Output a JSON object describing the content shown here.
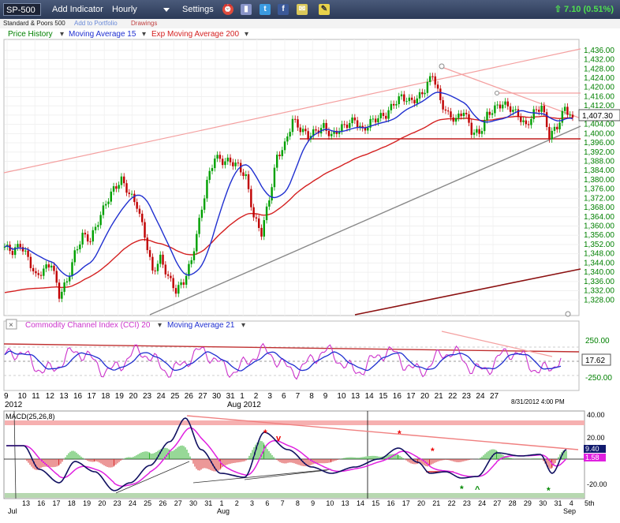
{
  "toolbar": {
    "symbol": "SP-500",
    "add_indicator": "Add Indicator",
    "interval": "Hourly",
    "settings": "Settings",
    "change": "7.10 (0.51%)"
  },
  "subbar": {
    "name": "Standard & Poors 500",
    "add_portfolio": "Add to Portfolio",
    "drawings": "Drawings"
  },
  "price_legend": {
    "price_history": "Price History",
    "ma15": "Moving Average 15",
    "ema200": "Exp Moving Average 200"
  },
  "cci_legend": {
    "cci": "Commodity Channel Index (CCI) 20",
    "ma21": "Moving Average 21"
  },
  "macd_label": "MACD(25,26,8)",
  "timestamp": "8/31/2012 4:00 PM",
  "colors": {
    "toolbar": "#2b3a57",
    "price_up": "#00a000",
    "price_down": "#c00000",
    "ma15": "#1f2fd0",
    "ema200": "#d42020",
    "trend_red": "#f08a8a",
    "trend_gray": "#808080",
    "cci": "#cc33cc",
    "macd_line": "#101060",
    "signal_line": "#e020e0"
  },
  "chart_data": [
    {
      "type": "line",
      "title": "SP-500 Hourly",
      "series": [
        {
          "name": "Moving Average 15"
        },
        {
          "name": "Exp Moving Average 200"
        }
      ],
      "close_points": [
        [
          0,
          1351
        ],
        [
          3,
          1349
        ],
        [
          6,
          1352
        ],
        [
          9,
          1346
        ],
        [
          12,
          1338
        ],
        [
          15,
          1341
        ],
        [
          18,
          1344
        ],
        [
          21,
          1330
        ],
        [
          24,
          1336
        ],
        [
          27,
          1348
        ],
        [
          30,
          1356
        ],
        [
          33,
          1354
        ],
        [
          36,
          1362
        ],
        [
          39,
          1370
        ],
        [
          42,
          1376
        ],
        [
          45,
          1380
        ],
        [
          48,
          1374
        ],
        [
          51,
          1369
        ],
        [
          54,
          1356
        ],
        [
          57,
          1340
        ],
        [
          60,
          1346
        ],
        [
          63,
          1338
        ],
        [
          66,
          1332
        ],
        [
          69,
          1336
        ],
        [
          72,
          1345
        ],
        [
          75,
          1362
        ],
        [
          78,
          1379
        ],
        [
          81,
          1390
        ],
        [
          84,
          1388
        ],
        [
          87,
          1388
        ],
        [
          90,
          1386
        ],
        [
          93,
          1381
        ],
        [
          96,
          1364
        ],
        [
          99,
          1357
        ],
        [
          102,
          1372
        ],
        [
          105,
          1390
        ],
        [
          108,
          1395
        ],
        [
          111,
          1406
        ],
        [
          114,
          1402
        ],
        [
          117,
          1399
        ],
        [
          120,
          1401
        ],
        [
          123,
          1403
        ],
        [
          126,
          1399
        ],
        [
          129,
          1402
        ],
        [
          132,
          1404
        ],
        [
          135,
          1406
        ],
        [
          138,
          1401
        ],
        [
          141,
          1405
        ],
        [
          144,
          1407
        ],
        [
          147,
          1408
        ],
        [
          150,
          1413
        ],
        [
          153,
          1416
        ],
        [
          156,
          1414
        ],
        [
          159,
          1415
        ],
        [
          162,
          1419
        ],
        [
          165,
          1426
        ],
        [
          168,
          1414
        ],
        [
          171,
          1408
        ],
        [
          174,
          1406
        ],
        [
          177,
          1410
        ],
        [
          180,
          1401
        ],
        [
          183,
          1400
        ],
        [
          186,
          1408
        ],
        [
          189,
          1411
        ],
        [
          192,
          1413
        ],
        [
          195,
          1411
        ],
        [
          198,
          1408
        ],
        [
          201,
          1403
        ],
        [
          204,
          1409
        ],
        [
          207,
          1412
        ],
        [
          210,
          1399
        ],
        [
          213,
          1403
        ],
        [
          216,
          1411
        ],
        [
          219,
          1407
        ]
      ],
      "ylim": [
        1324,
        1438
      ],
      "y_ticks": [
        "1,436.00",
        "1,432.00",
        "1,428.00",
        "1,424.00",
        "1,420.00",
        "1,416.00",
        "1,412.00",
        "1,408.00",
        "1,404.00",
        "1,400.00",
        "1,396.00",
        "1,392.00",
        "1,388.00",
        "1,384.00",
        "1,380.00",
        "1,376.00",
        "1,372.00",
        "1,368.00",
        "1,364.00",
        "1,360.00",
        "1,356.00",
        "1,352.00",
        "1,348.00",
        "1,344.00",
        "1,340.00",
        "1,336.00",
        "1,332.00",
        "1,328.00"
      ],
      "last_value": "1,407.30"
    },
    {
      "type": "line",
      "title": "Commodity Channel Index (CCI) 20",
      "y_ticks": [
        "250.00",
        "-250.00"
      ],
      "last_value": "17.62",
      "x_ticks": [
        "9",
        "10",
        "11",
        "12",
        "13",
        "16",
        "17",
        "18",
        "19",
        "20",
        "23",
        "24",
        "25",
        "26",
        "27",
        "30",
        "31",
        "1",
        "2",
        "3",
        "6",
        "7",
        "8",
        "9",
        "10",
        "13",
        "14",
        "15",
        "16",
        "17",
        "20",
        "21",
        "22",
        "23",
        "24",
        "27"
      ],
      "x_row_labels": [
        "2012",
        "Aug 2012"
      ]
    },
    {
      "type": "line",
      "title": "MACD(25,26,8)",
      "y_ticks": [
        "40.00",
        "20.00",
        "-20.00"
      ],
      "values": {
        "macd": "9.40",
        "signal": "1.58"
      },
      "x_ticks": [
        "13",
        "16",
        "17",
        "18",
        "19",
        "20",
        "23",
        "24",
        "25",
        "26",
        "27",
        "30",
        "31",
        "1",
        "2",
        "3",
        "6",
        "7",
        "8",
        "9",
        "10",
        "13",
        "14",
        "15",
        "16",
        "17",
        "20",
        "21",
        "22",
        "23",
        "24",
        "27",
        "28",
        "29",
        "30",
        "31",
        "4",
        "5th"
      ],
      "x_row_labels": [
        "Jul",
        "Aug",
        "Sep"
      ]
    }
  ]
}
